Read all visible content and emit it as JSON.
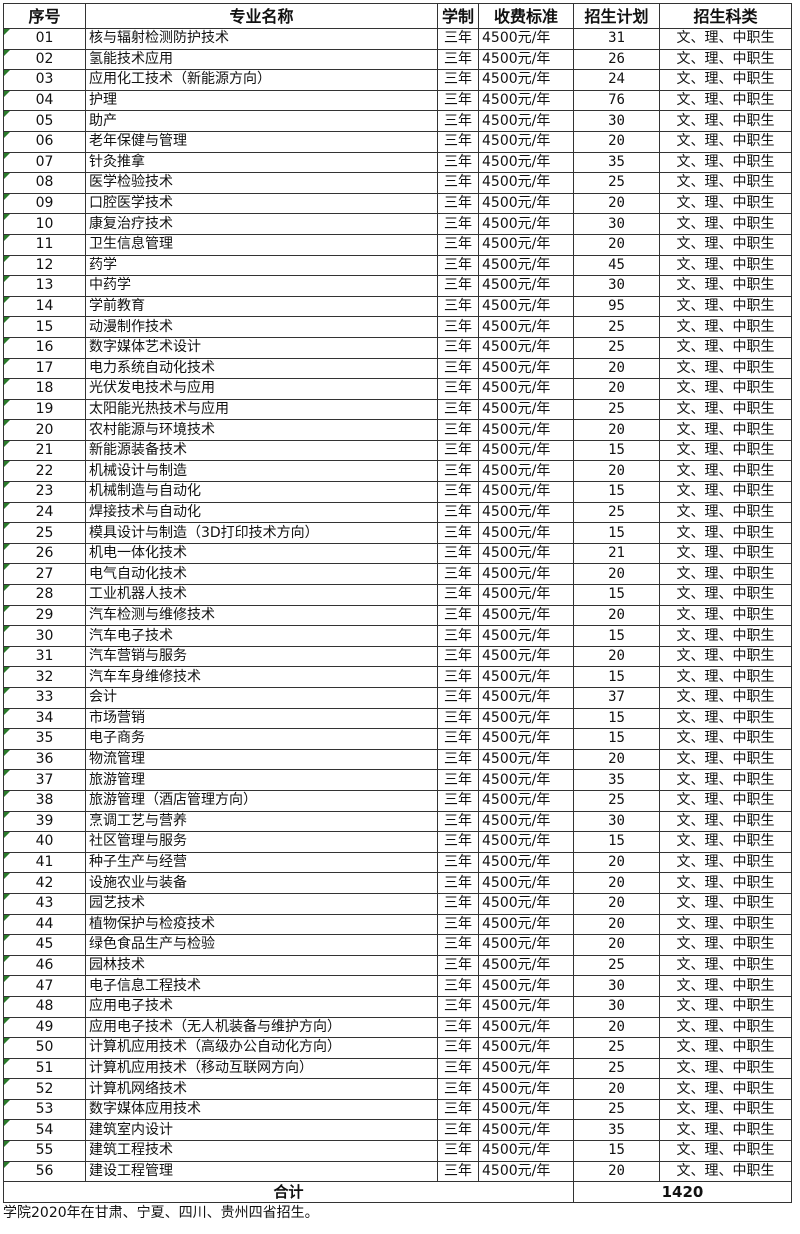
{
  "headers": [
    "序号",
    "专业名称",
    "学制",
    "收费标准",
    "招生计划",
    "招生科类"
  ],
  "rows": [
    [
      "01",
      "核与辐射检测防护技术",
      "三年",
      "4500元/年",
      "31",
      "文、理、中职生"
    ],
    [
      "02",
      "氢能技术应用",
      "三年",
      "4500元/年",
      "26",
      "文、理、中职生"
    ],
    [
      "03",
      "应用化工技术（新能源方向）",
      "三年",
      "4500元/年",
      "24",
      "文、理、中职生"
    ],
    [
      "04",
      "护理",
      "三年",
      "4500元/年",
      "76",
      "文、理、中职生"
    ],
    [
      "05",
      "助产",
      "三年",
      "4500元/年",
      "30",
      "文、理、中职生"
    ],
    [
      "06",
      "老年保健与管理",
      "三年",
      "4500元/年",
      "20",
      "文、理、中职生"
    ],
    [
      "07",
      "针灸推拿",
      "三年",
      "4500元/年",
      "35",
      "文、理、中职生"
    ],
    [
      "08",
      "医学检验技术",
      "三年",
      "4500元/年",
      "25",
      "文、理、中职生"
    ],
    [
      "09",
      "口腔医学技术",
      "三年",
      "4500元/年",
      "20",
      "文、理、中职生"
    ],
    [
      "10",
      "康复治疗技术",
      "三年",
      "4500元/年",
      "30",
      "文、理、中职生"
    ],
    [
      "11",
      "卫生信息管理",
      "三年",
      "4500元/年",
      "20",
      "文、理、中职生"
    ],
    [
      "12",
      "药学",
      "三年",
      "4500元/年",
      "45",
      "文、理、中职生"
    ],
    [
      "13",
      "中药学",
      "三年",
      "4500元/年",
      "30",
      "文、理、中职生"
    ],
    [
      "14",
      "学前教育",
      "三年",
      "4500元/年",
      "95",
      "文、理、中职生"
    ],
    [
      "15",
      "动漫制作技术",
      "三年",
      "4500元/年",
      "25",
      "文、理、中职生"
    ],
    [
      "16",
      "数字媒体艺术设计",
      "三年",
      "4500元/年",
      "25",
      "文、理、中职生"
    ],
    [
      "17",
      "电力系统自动化技术",
      "三年",
      "4500元/年",
      "20",
      "文、理、中职生"
    ],
    [
      "18",
      "光伏发电技术与应用",
      "三年",
      "4500元/年",
      "20",
      "文、理、中职生"
    ],
    [
      "19",
      "太阳能光热技术与应用",
      "三年",
      "4500元/年",
      "25",
      "文、理、中职生"
    ],
    [
      "20",
      "农村能源与环境技术",
      "三年",
      "4500元/年",
      "20",
      "文、理、中职生"
    ],
    [
      "21",
      "新能源装备技术",
      "三年",
      "4500元/年",
      "15",
      "文、理、中职生"
    ],
    [
      "22",
      "机械设计与制造",
      "三年",
      "4500元/年",
      "20",
      "文、理、中职生"
    ],
    [
      "23",
      "机械制造与自动化",
      "三年",
      "4500元/年",
      "15",
      "文、理、中职生"
    ],
    [
      "24",
      "焊接技术与自动化",
      "三年",
      "4500元/年",
      "25",
      "文、理、中职生"
    ],
    [
      "25",
      "模具设计与制造（3D打印技术方向）",
      "三年",
      "4500元/年",
      "15",
      "文、理、中职生"
    ],
    [
      "26",
      "机电一体化技术",
      "三年",
      "4500元/年",
      "21",
      "文、理、中职生"
    ],
    [
      "27",
      "电气自动化技术",
      "三年",
      "4500元/年",
      "20",
      "文、理、中职生"
    ],
    [
      "28",
      "工业机器人技术",
      "三年",
      "4500元/年",
      "15",
      "文、理、中职生"
    ],
    [
      "29",
      "汽车检测与维修技术",
      "三年",
      "4500元/年",
      "20",
      "文、理、中职生"
    ],
    [
      "30",
      "汽车电子技术",
      "三年",
      "4500元/年",
      "15",
      "文、理、中职生"
    ],
    [
      "31",
      "汽车营销与服务",
      "三年",
      "4500元/年",
      "20",
      "文、理、中职生"
    ],
    [
      "32",
      "汽车车身维修技术",
      "三年",
      "4500元/年",
      "15",
      "文、理、中职生"
    ],
    [
      "33",
      "会计",
      "三年",
      "4500元/年",
      "37",
      "文、理、中职生"
    ],
    [
      "34",
      "市场营销",
      "三年",
      "4500元/年",
      "15",
      "文、理、中职生"
    ],
    [
      "35",
      "电子商务",
      "三年",
      "4500元/年",
      "15",
      "文、理、中职生"
    ],
    [
      "36",
      "物流管理",
      "三年",
      "4500元/年",
      "20",
      "文、理、中职生"
    ],
    [
      "37",
      "旅游管理",
      "三年",
      "4500元/年",
      "35",
      "文、理、中职生"
    ],
    [
      "38",
      "旅游管理（酒店管理方向）",
      "三年",
      "4500元/年",
      "25",
      "文、理、中职生"
    ],
    [
      "39",
      "烹调工艺与营养",
      "三年",
      "4500元/年",
      "30",
      "文、理、中职生"
    ],
    [
      "40",
      "社区管理与服务",
      "三年",
      "4500元/年",
      "15",
      "文、理、中职生"
    ],
    [
      "41",
      "种子生产与经营",
      "三年",
      "4500元/年",
      "20",
      "文、理、中职生"
    ],
    [
      "42",
      "设施农业与装备",
      "三年",
      "4500元/年",
      "20",
      "文、理、中职生"
    ],
    [
      "43",
      "园艺技术",
      "三年",
      "4500元/年",
      "20",
      "文、理、中职生"
    ],
    [
      "44",
      "植物保护与检疫技术",
      "三年",
      "4500元/年",
      "20",
      "文、理、中职生"
    ],
    [
      "45",
      "绿色食品生产与检验",
      "三年",
      "4500元/年",
      "20",
      "文、理、中职生"
    ],
    [
      "46",
      "园林技术",
      "三年",
      "4500元/年",
      "25",
      "文、理、中职生"
    ],
    [
      "47",
      "电子信息工程技术",
      "三年",
      "4500元/年",
      "30",
      "文、理、中职生"
    ],
    [
      "48",
      "应用电子技术",
      "三年",
      "4500元/年",
      "30",
      "文、理、中职生"
    ],
    [
      "49",
      "应用电子技术（无人机装备与维护方向）",
      "三年",
      "4500元/年",
      "20",
      "文、理、中职生"
    ],
    [
      "50",
      "计算机应用技术（高级办公自动化方向）",
      "三年",
      "4500元/年",
      "25",
      "文、理、中职生"
    ],
    [
      "51",
      "计算机应用技术（移动互联网方向）",
      "三年",
      "4500元/年",
      "25",
      "文、理、中职生"
    ],
    [
      "52",
      "计算机网络技术",
      "三年",
      "4500元/年",
      "20",
      "文、理、中职生"
    ],
    [
      "53",
      "数字媒体应用技术",
      "三年",
      "4500元/年",
      "25",
      "文、理、中职生"
    ],
    [
      "54",
      "建筑室内设计",
      "三年",
      "4500元/年",
      "35",
      "文、理、中职生"
    ],
    [
      "55",
      "建筑工程技术",
      "三年",
      "4500元/年",
      "15",
      "文、理、中职生"
    ],
    [
      "56",
      "建设工程管理",
      "三年",
      "4500元/年",
      "20",
      "文、理、中职生"
    ]
  ],
  "total": {
    "label": "合计",
    "value": "1420"
  },
  "note": "学院2020年在甘肃、宁夏、四川、贵州四省招生。"
}
